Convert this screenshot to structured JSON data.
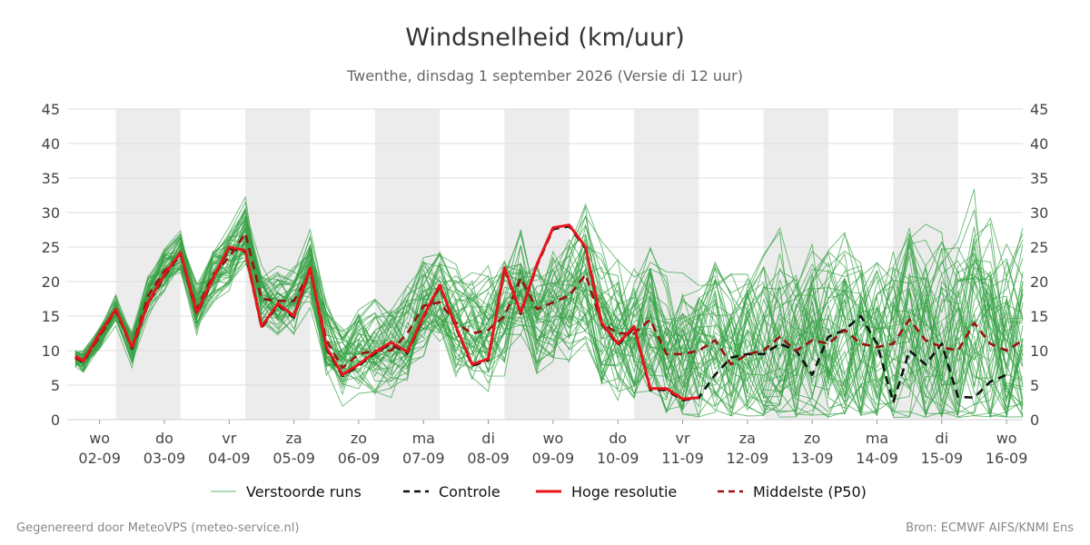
{
  "chart_data": {
    "type": "line",
    "title": "Windsnelheid (km/uur)",
    "subtitle": "Twenthe, dinsdag  1 september 2026 (Versie di 12 uur)",
    "ylim": [
      0,
      45
    ],
    "yticks": [
      0,
      5,
      10,
      15,
      20,
      25,
      30,
      35,
      40,
      45
    ],
    "xlim": [
      0,
      29.5
    ],
    "x_step_hours": 12,
    "grid": true,
    "day_ticks": [
      {
        "x": 1,
        "day": "wo",
        "date": "02-09"
      },
      {
        "x": 3,
        "day": "do",
        "date": "03-09"
      },
      {
        "x": 5,
        "day": "vr",
        "date": "04-09"
      },
      {
        "x": 7,
        "day": "za",
        "date": "05-09"
      },
      {
        "x": 9,
        "day": "zo",
        "date": "06-09"
      },
      {
        "x": 11,
        "day": "ma",
        "date": "07-09"
      },
      {
        "x": 13,
        "day": "di",
        "date": "08-09"
      },
      {
        "x": 15,
        "day": "wo",
        "date": "09-09"
      },
      {
        "x": 17,
        "day": "do",
        "date": "10-09"
      },
      {
        "x": 19,
        "day": "vr",
        "date": "11-09"
      },
      {
        "x": 21,
        "day": "za",
        "date": "12-09"
      },
      {
        "x": 23,
        "day": "zo",
        "date": "13-09"
      },
      {
        "x": 25,
        "day": "ma",
        "date": "14-09"
      },
      {
        "x": 27,
        "day": "di",
        "date": "15-09"
      },
      {
        "x": 29,
        "day": "wo",
        "date": "16-09"
      }
    ],
    "shaded_bands": [
      [
        1.5,
        3.5
      ],
      [
        5.5,
        7.5
      ],
      [
        9.5,
        11.5
      ],
      [
        13.5,
        15.5
      ],
      [
        17.5,
        19.5
      ],
      [
        21.5,
        23.5
      ],
      [
        25.5,
        27.5
      ],
      [
        29.5,
        31.5
      ]
    ],
    "legend": {
      "placement": "bottom",
      "items": [
        {
          "label": "Verstoorde runs",
          "style": "thin",
          "color": "#5cb85c"
        },
        {
          "label": "Controle",
          "style": "dashed",
          "color": "#111111"
        },
        {
          "label": "Hoge resolutie",
          "style": "solid",
          "color": "#e8141b"
        },
        {
          "label": "Middelste (P50)",
          "style": "dashed",
          "color": "#9b1111"
        }
      ]
    },
    "series": [
      {
        "name": "Hoge resolutie",
        "color": "#e8141b",
        "x": [
          0.25,
          0.5,
          1.0,
          1.5,
          2.0,
          2.5,
          3.0,
          3.5,
          4.0,
          4.5,
          5.0,
          5.5,
          6.0,
          6.5,
          7.0,
          7.5,
          8.0,
          8.5,
          9.0,
          9.5,
          10.0,
          10.5,
          11.0,
          11.5,
          12.0,
          12.5,
          13.0,
          13.5,
          14.0,
          14.5,
          15.0,
          15.5,
          16.0,
          16.5,
          17.0,
          17.5,
          18.0,
          18.5,
          19.0,
          19.5,
          20.0,
          20.5
        ],
        "values": [
          9.2,
          8.5,
          12.5,
          16.0,
          10.5,
          17.0,
          21.0,
          24.2,
          15.5,
          20.5,
          25.0,
          24.5,
          13.5,
          16.8,
          15.0,
          22.0,
          10.5,
          6.5,
          8.0,
          9.8,
          11.2,
          9.8,
          15.0,
          19.5,
          13.5,
          8.0,
          8.8,
          22.0,
          15.5,
          22.5,
          27.8,
          28.2,
          25.0,
          14.0,
          11.0,
          13.5,
          4.5,
          4.5,
          3.0,
          3.2,
          null,
          null
        ]
      },
      {
        "name": "Controle",
        "color": "#111111",
        "x": [
          0.25,
          0.5,
          1.0,
          1.5,
          2.0,
          2.5,
          3.0,
          3.5,
          4.0,
          4.5,
          5.0,
          5.5,
          6.0,
          6.5,
          7.0,
          7.5,
          8.0,
          8.5,
          9.0,
          9.5,
          10.0,
          10.5,
          11.0,
          11.5,
          12.0,
          12.5,
          13.0,
          13.5,
          14.0,
          14.5,
          15.0,
          15.5,
          16.0,
          16.5,
          17.0,
          17.5,
          18.0,
          18.5,
          19.0,
          19.5,
          20.0,
          20.5,
          21.0,
          21.5,
          22.0,
          22.5,
          23.0,
          23.5,
          24.0,
          24.5,
          25.0,
          25.5,
          26.0,
          26.5,
          27.0,
          27.5,
          28.0,
          28.5,
          29.0,
          29.5
        ],
        "values": [
          9.0,
          8.3,
          12.3,
          15.8,
          10.3,
          16.8,
          20.8,
          24.0,
          15.3,
          20.3,
          24.8,
          24.3,
          13.3,
          16.6,
          14.8,
          21.8,
          10.3,
          6.3,
          7.8,
          9.6,
          11.0,
          9.6,
          14.8,
          19.3,
          13.3,
          7.8,
          8.6,
          21.8,
          15.3,
          22.3,
          27.6,
          28.0,
          24.8,
          13.8,
          10.8,
          13.3,
          4.3,
          4.3,
          2.8,
          3.2,
          6.5,
          9.0,
          9.5,
          9.5,
          11.0,
          10.0,
          6.5,
          12.0,
          13.0,
          15.0,
          11.0,
          2.5,
          10.0,
          8.0,
          11.0,
          3.3,
          3.2,
          5.5,
          6.5,
          null
        ]
      },
      {
        "name": "Middelste (P50)",
        "color": "#9b1111",
        "x": [
          0.25,
          0.5,
          1.0,
          1.5,
          2.0,
          2.5,
          3.0,
          3.5,
          4.0,
          4.5,
          5.0,
          5.5,
          6.0,
          6.5,
          7.0,
          7.5,
          8.0,
          8.5,
          9.0,
          9.5,
          10.0,
          10.5,
          11.0,
          11.5,
          12.0,
          12.5,
          13.0,
          13.5,
          14.0,
          14.5,
          15.0,
          15.5,
          16.0,
          16.5,
          17.0,
          17.5,
          18.0,
          18.5,
          19.0,
          19.5,
          20.0,
          20.5,
          21.0,
          21.5,
          22.0,
          22.5,
          23.0,
          23.5,
          24.0,
          24.5,
          25.0,
          25.5,
          26.0,
          26.5,
          27.0,
          27.5,
          28.0,
          28.5,
          29.0,
          29.5
        ],
        "values": [
          8.8,
          8.5,
          12.0,
          16.0,
          10.5,
          18.0,
          21.5,
          24.0,
          16.0,
          21.0,
          23.5,
          27.0,
          17.5,
          17.2,
          17.2,
          21.5,
          11.5,
          7.5,
          9.5,
          10.0,
          10.0,
          12.5,
          16.5,
          17.0,
          14.0,
          12.5,
          13.0,
          15.0,
          20.5,
          16.0,
          17.0,
          18.0,
          21.0,
          14.0,
          12.5,
          12.5,
          14.5,
          9.5,
          9.5,
          10.0,
          11.5,
          8.0,
          9.5,
          10.0,
          12.0,
          10.0,
          11.5,
          11.0,
          13.0,
          11.0,
          10.5,
          11.0,
          14.5,
          11.5,
          10.5,
          10.0,
          14.0,
          11.0,
          10.0,
          11.5
        ]
      }
    ]
  },
  "footer": {
    "left": "Gegenereerd door MeteoVPS (meteo-service.nl)",
    "right": "Bron: ECMWF AIFS/KNMI Ens"
  }
}
